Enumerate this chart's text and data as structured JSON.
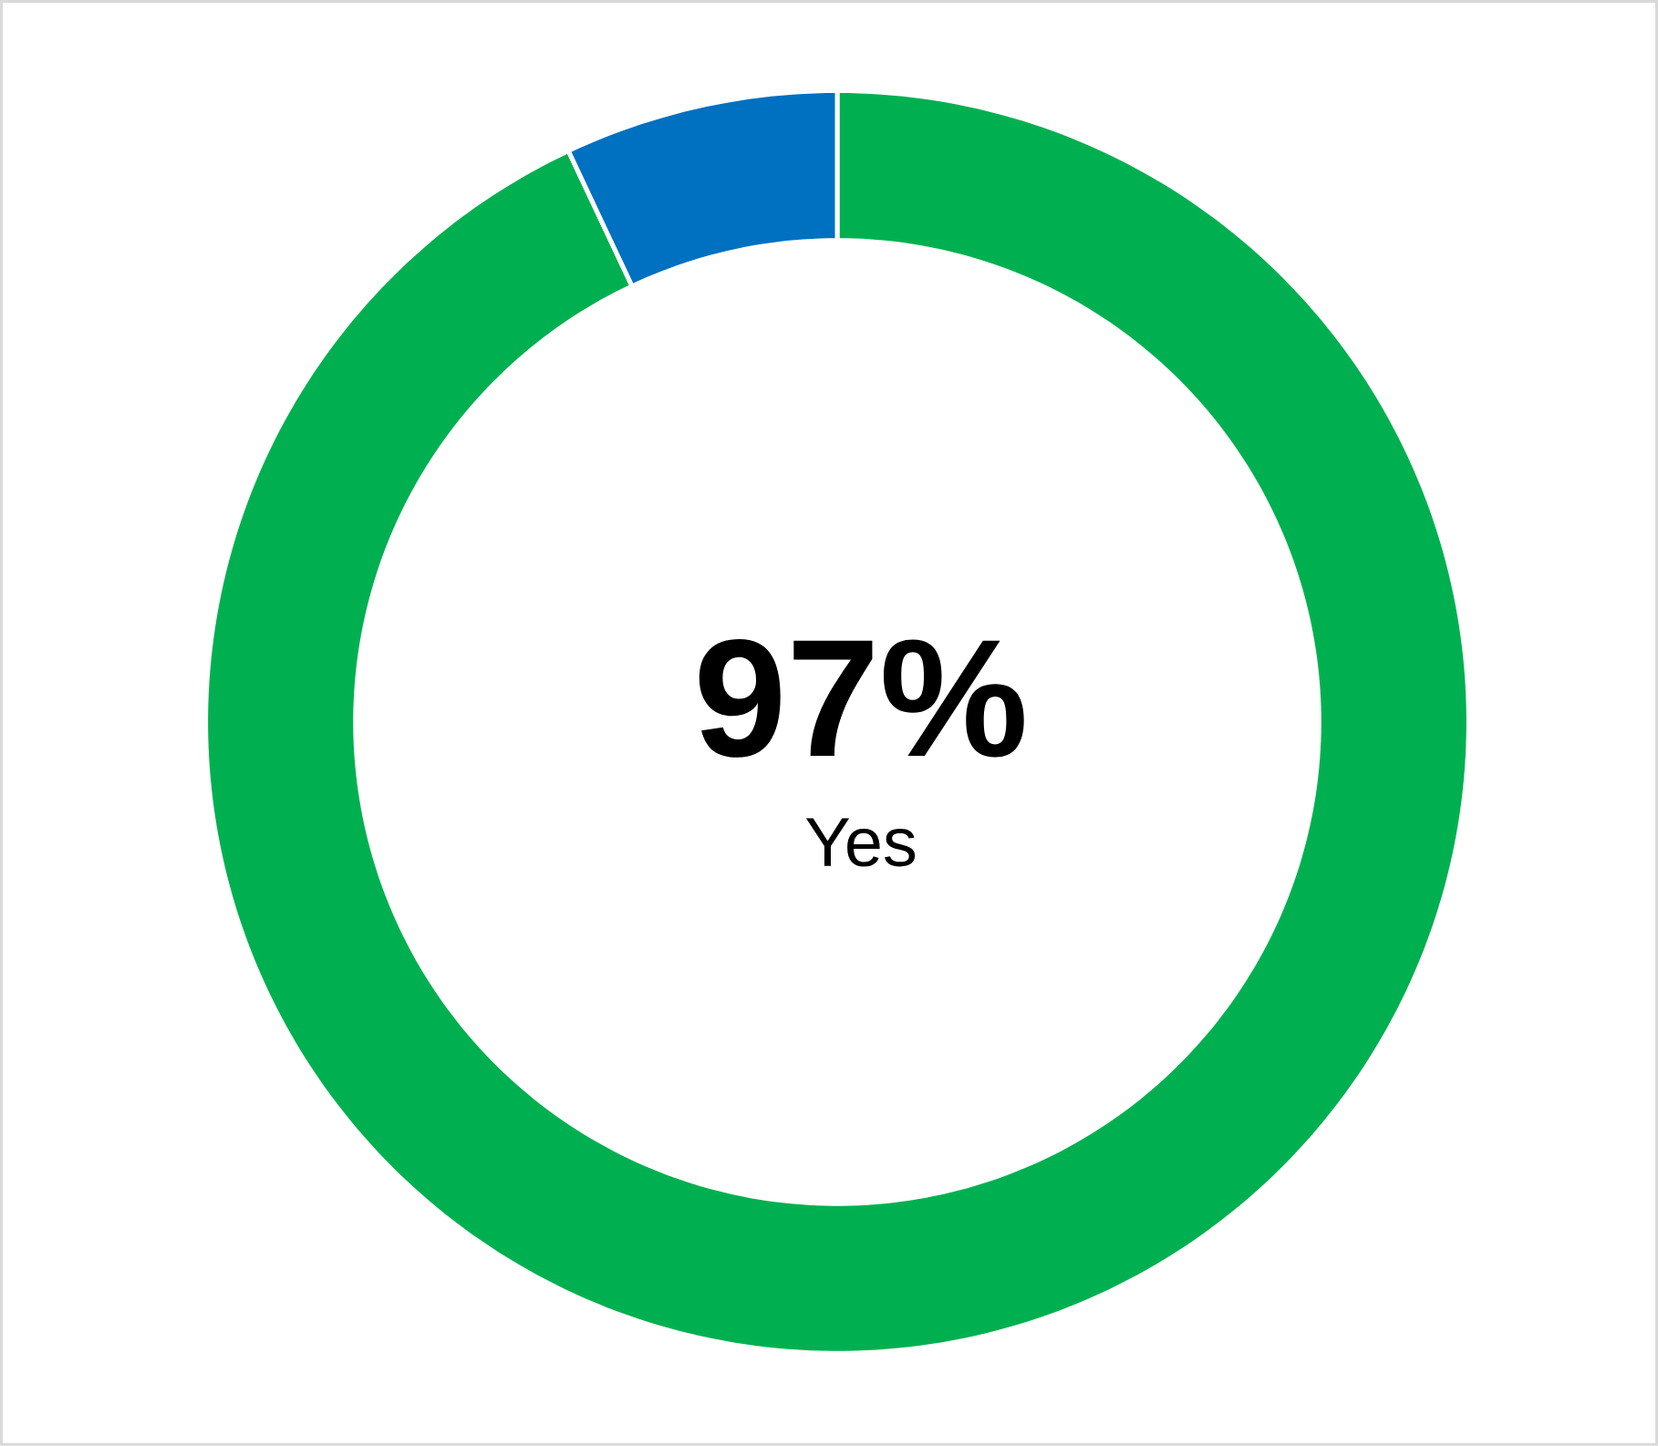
{
  "chart_data": {
    "type": "donut",
    "categories": [
      "Yes",
      null
    ],
    "values": [
      93,
      7
    ],
    "colors": [
      "#00b050",
      "#0070c0"
    ],
    "annotations": [
      "97%"
    ]
  }
}
